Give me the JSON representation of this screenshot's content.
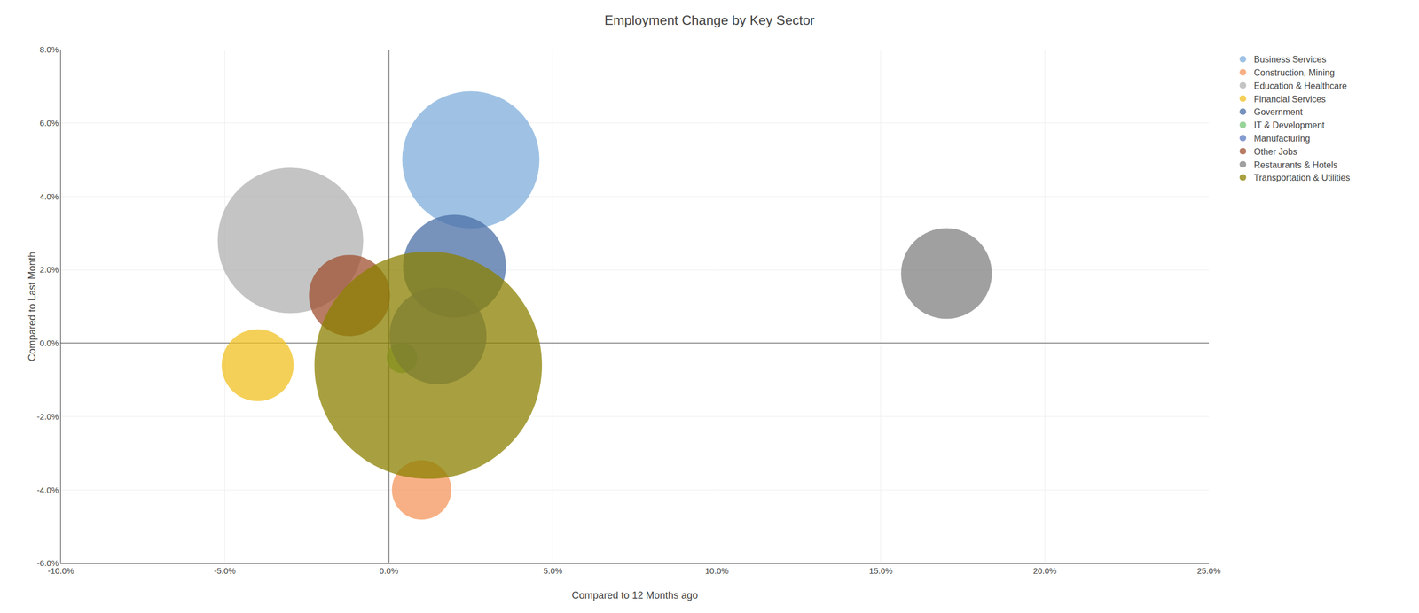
{
  "chart_data": {
    "type": "scatter",
    "title": "Employment Change by Key Sector",
    "xlabel": "Compared to 12 Months ago",
    "ylabel": "Compared to Last Month",
    "xlim": [
      -0.1,
      0.25
    ],
    "ylim": [
      -0.06,
      0.08
    ],
    "xticks": [
      {
        "value": -0.1,
        "label": "-10.0%"
      },
      {
        "value": -0.05,
        "label": "-5.0%"
      },
      {
        "value": 0.0,
        "label": "0.0%"
      },
      {
        "value": 0.05,
        "label": "5.0%"
      },
      {
        "value": 0.1,
        "label": "10.0%"
      },
      {
        "value": 0.15,
        "label": "15.0%"
      },
      {
        "value": 0.2,
        "label": "20.0%"
      },
      {
        "value": 0.25,
        "label": "25.0%"
      }
    ],
    "yticks": [
      {
        "value": -0.06,
        "label": "-6.0%"
      },
      {
        "value": -0.04,
        "label": "-4.0%"
      },
      {
        "value": -0.02,
        "label": "-2.0%"
      },
      {
        "value": 0.0,
        "label": "0.0%"
      },
      {
        "value": 0.02,
        "label": "2.0%"
      },
      {
        "value": 0.04,
        "label": "4.0%"
      },
      {
        "value": 0.06,
        "label": "6.0%"
      },
      {
        "value": 0.08,
        "label": "8.0%"
      }
    ],
    "grid": true,
    "legend": "upper right",
    "series": [
      {
        "name": "Business Services",
        "color": "#7faedb",
        "x": [
          0.025
        ],
        "y": [
          0.05
        ],
        "size": [
          8000
        ]
      },
      {
        "name": "Construction, Mining",
        "color": "#f4955c",
        "x": [
          0.01
        ],
        "y": [
          -0.04
        ],
        "size": [
          1500
        ]
      },
      {
        "name": "Education & Healthcare",
        "color": "#b0b0b0",
        "x": [
          -0.03
        ],
        "y": [
          0.028
        ],
        "size": [
          9000
        ]
      },
      {
        "name": "Financial Services",
        "color": "#f0c020",
        "x": [
          -0.04
        ],
        "y": [
          -0.006
        ],
        "size": [
          2200
        ]
      },
      {
        "name": "Government",
        "color": "#4a6fa5",
        "x": [
          0.02
        ],
        "y": [
          0.021
        ],
        "size": [
          4500
        ]
      },
      {
        "name": "IT & Development",
        "color": "#74c476",
        "x": [
          0.004
        ],
        "y": [
          -0.004
        ],
        "size": [
          400
        ]
      },
      {
        "name": "Manufacturing",
        "color": "#5a7abf",
        "x": [
          0.015
        ],
        "y": [
          0.002
        ],
        "size": [
          4000
        ]
      },
      {
        "name": "Other Jobs",
        "color": "#a05030",
        "x": [
          -0.012
        ],
        "y": [
          0.013
        ],
        "size": [
          2800
        ]
      },
      {
        "name": "Restaurants & Hotels",
        "color": "#808080",
        "x": [
          0.17
        ],
        "y": [
          0.019
        ],
        "size": [
          3500
        ]
      },
      {
        "name": "Transportation & Utilities",
        "color": "#8b8000",
        "x": [
          0.012
        ],
        "y": [
          -0.006
        ],
        "size": [
          22000
        ]
      }
    ]
  }
}
